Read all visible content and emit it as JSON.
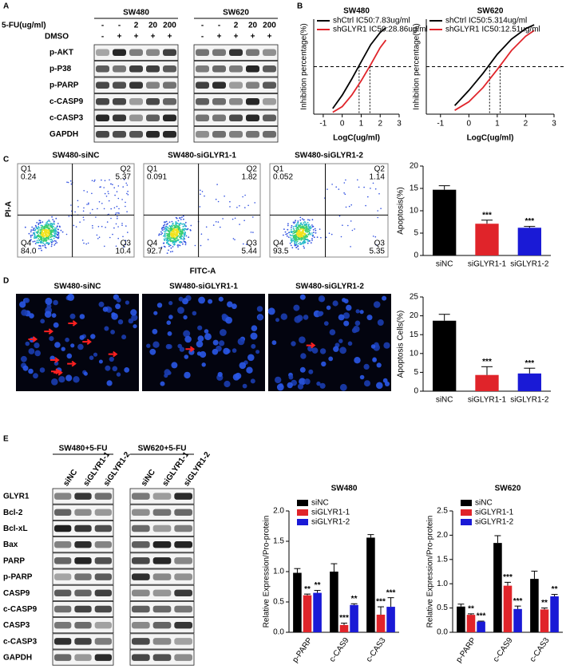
{
  "panel_labels": [
    "A",
    "B",
    "C",
    "D",
    "E"
  ],
  "blot_A": {
    "cell_lines": [
      "SW480",
      "SW620"
    ],
    "row_headers": [
      "5-FU(ug/ml)",
      "DMSO"
    ],
    "fu_labels": [
      "-",
      "-",
      "2",
      "20",
      "200"
    ],
    "dmso_labels": [
      "-",
      "+",
      "+",
      "+",
      "+"
    ],
    "proteins": [
      "p-AKT",
      "p-P38",
      "p-PARP",
      "c-CASP9",
      "c-CASP3",
      "GAPDH"
    ]
  },
  "flow": {
    "y_label": "PI-A",
    "x_label": "FITC-A",
    "plots": [
      {
        "title": "SW480-siNC",
        "quadrants": [
          [
            "Q1",
            "0.24"
          ],
          [
            "Q2",
            "5.37"
          ],
          [
            "Q4",
            "84.0"
          ],
          [
            "Q3",
            "10.4"
          ]
        ]
      },
      {
        "title": "SW480-siGLYR1-1",
        "quadrants": [
          [
            "Q1",
            "0.091"
          ],
          [
            "Q2",
            "1.82"
          ],
          [
            "Q4",
            "92.7"
          ],
          [
            "Q3",
            "5.44"
          ]
        ]
      },
      {
        "title": "SW480-siGLYR1-2",
        "quadrants": [
          [
            "Q1",
            "0.052"
          ],
          [
            "Q2",
            "1.14"
          ],
          [
            "Q4",
            "93.5"
          ],
          [
            "Q3",
            "5.35"
          ]
        ]
      }
    ]
  },
  "images_D": {
    "titles": [
      "SW480-siNC",
      "SW480-siGLYR1-1",
      "SW480-siGLYR1-2"
    ]
  },
  "blot_E": {
    "groups": [
      "SW480+5-FU",
      "SW620+5-FU"
    ],
    "lanes": [
      "siNC",
      "siGLYR1-1",
      "siGLYR1-2"
    ],
    "proteins": [
      "GLYR1",
      "Bcl-2",
      "Bcl-xL",
      "Bax",
      "PARP",
      "p-PARP",
      "CASP9",
      "c-CASP9",
      "CASP3",
      "c-CASP3",
      "GAPDH"
    ]
  },
  "chart_data": [
    {
      "type": "line",
      "title": "SW480",
      "x_label": "LogC(ug/ml)",
      "y_label": "Inhibition percentage(%)",
      "x": [
        -0.5,
        0,
        0.5,
        1,
        1.5,
        2,
        2.3
      ],
      "xlim": [
        -1.5,
        3
      ],
      "xticks": [
        -1,
        0,
        1,
        2,
        3
      ],
      "ylim": [
        0,
        100
      ],
      "reference_line": 50,
      "series": [
        {
          "name": "shCtrl IC50:7.83ug/ml",
          "color": "#000000",
          "values": [
            6,
            20,
            37,
            55,
            73,
            86,
            91
          ],
          "ic50_x": 0.89
        },
        {
          "name": "shGLYR1 IC50:28.86ug/ml",
          "color": "#e0242a",
          "values": [
            2,
            8,
            20,
            35,
            52,
            70,
            78
          ],
          "ic50_x": 1.46
        }
      ]
    },
    {
      "type": "line",
      "title": "SW620",
      "x_label": "LogC(ug/ml)",
      "y_label": "Inhibition percentage(%)",
      "x": [
        -0.5,
        0,
        0.5,
        1,
        1.5,
        2,
        2.3
      ],
      "xlim": [
        -1.5,
        3
      ],
      "xticks": [
        -1,
        0,
        1,
        2,
        3
      ],
      "ylim": [
        0,
        100
      ],
      "reference_line": 50,
      "series": [
        {
          "name": "shCtrl IC50:5.314ug/ml",
          "color": "#000000",
          "values": [
            9,
            25,
            43,
            63,
            79,
            90,
            94
          ],
          "ic50_x": 0.73
        },
        {
          "name": "shGLYR1 IC50:12.51ug/ml",
          "color": "#e0242a",
          "values": [
            4,
            13,
            28,
            47,
            67,
            82,
            88
          ],
          "ic50_x": 1.1
        }
      ]
    },
    {
      "type": "bar",
      "y_label": "Apoptosis(%)",
      "categories": [
        "siNC",
        "siGLYR1-1",
        "siGLYR1-2"
      ],
      "values": [
        14.7,
        7.1,
        6.2
      ],
      "errors": [
        0.9,
        0.8,
        0.3
      ],
      "colors": [
        "#000000",
        "#e0242a",
        "#1a1ad6"
      ],
      "significance": [
        null,
        "***",
        "***"
      ],
      "ylim": [
        0,
        20
      ],
      "yticks": [
        0,
        5,
        10,
        15,
        20
      ]
    },
    {
      "type": "bar",
      "y_label": "Apoptosis Cells(%)",
      "categories": [
        "siNC",
        "siGLYR1-1",
        "siGLYR1-2"
      ],
      "values": [
        18.7,
        4.3,
        4.7
      ],
      "errors": [
        1.7,
        2.2,
        1.4
      ],
      "colors": [
        "#000000",
        "#e0242a",
        "#1a1ad6"
      ],
      "significance": [
        null,
        "***",
        "***"
      ],
      "ylim": [
        0,
        25
      ],
      "yticks": [
        0,
        5,
        10,
        15,
        20,
        25
      ]
    },
    {
      "type": "grouped_bar",
      "title": "SW480",
      "y_label": "Relative Expression/Pro-protein",
      "categories": [
        "p-PARP",
        "c-CAS9",
        "c-CAS3"
      ],
      "ylim": [
        0,
        2
      ],
      "yticks": [
        {
          "value": 0,
          "label": "0.0"
        },
        0.5,
        {
          "value": 1,
          "label": "1.0"
        },
        1.5,
        {
          "value": 2,
          "label": "2.0"
        }
      ],
      "series": [
        {
          "name": "siNC",
          "color": "#000000",
          "values": [
            0.98,
            1.0,
            1.56
          ],
          "errors": [
            0.07,
            0.13,
            0.05
          ],
          "significance": [
            null,
            null,
            null
          ]
        },
        {
          "name": "siGLYR1-1",
          "color": "#e0242a",
          "values": [
            0.61,
            0.12,
            0.29
          ],
          "errors": [
            0.02,
            0.03,
            0.13
          ],
          "significance": [
            "**",
            "***",
            "***"
          ]
        },
        {
          "name": "siGLYR1-2",
          "color": "#1a1ad6",
          "values": [
            0.65,
            0.45,
            0.42
          ],
          "errors": [
            0.04,
            0.02,
            0.15
          ],
          "significance": [
            "**",
            "**",
            "***"
          ]
        }
      ]
    },
    {
      "type": "grouped_bar",
      "title": "SW620",
      "y_label": "Relative Expression/Pro-protein",
      "categories": [
        "p-PARP",
        "c-CAS9",
        "c-CAS3"
      ],
      "ylim": [
        0,
        2.5
      ],
      "yticks": [
        {
          "value": 0,
          "label": "0.0"
        },
        0.5,
        {
          "value": 1,
          "label": "1.0"
        },
        1.5,
        {
          "value": 2,
          "label": "2.0"
        },
        2.5
      ],
      "series": [
        {
          "name": "siNC",
          "color": "#000000",
          "values": [
            0.53,
            1.84,
            1.1
          ],
          "errors": [
            0.05,
            0.15,
            0.16
          ],
          "significance": [
            null,
            null,
            null
          ]
        },
        {
          "name": "siGLYR1-1",
          "color": "#e0242a",
          "values": [
            0.36,
            0.96,
            0.47
          ],
          "errors": [
            0.02,
            0.07,
            0.03
          ],
          "significance": [
            "**",
            "***",
            "**"
          ]
        },
        {
          "name": "siGLYR1-2",
          "color": "#1a1ad6",
          "values": [
            0.22,
            0.48,
            0.74
          ],
          "errors": [
            0.01,
            0.06,
            0.04
          ],
          "significance": [
            "***",
            "***",
            "**"
          ]
        }
      ]
    }
  ]
}
